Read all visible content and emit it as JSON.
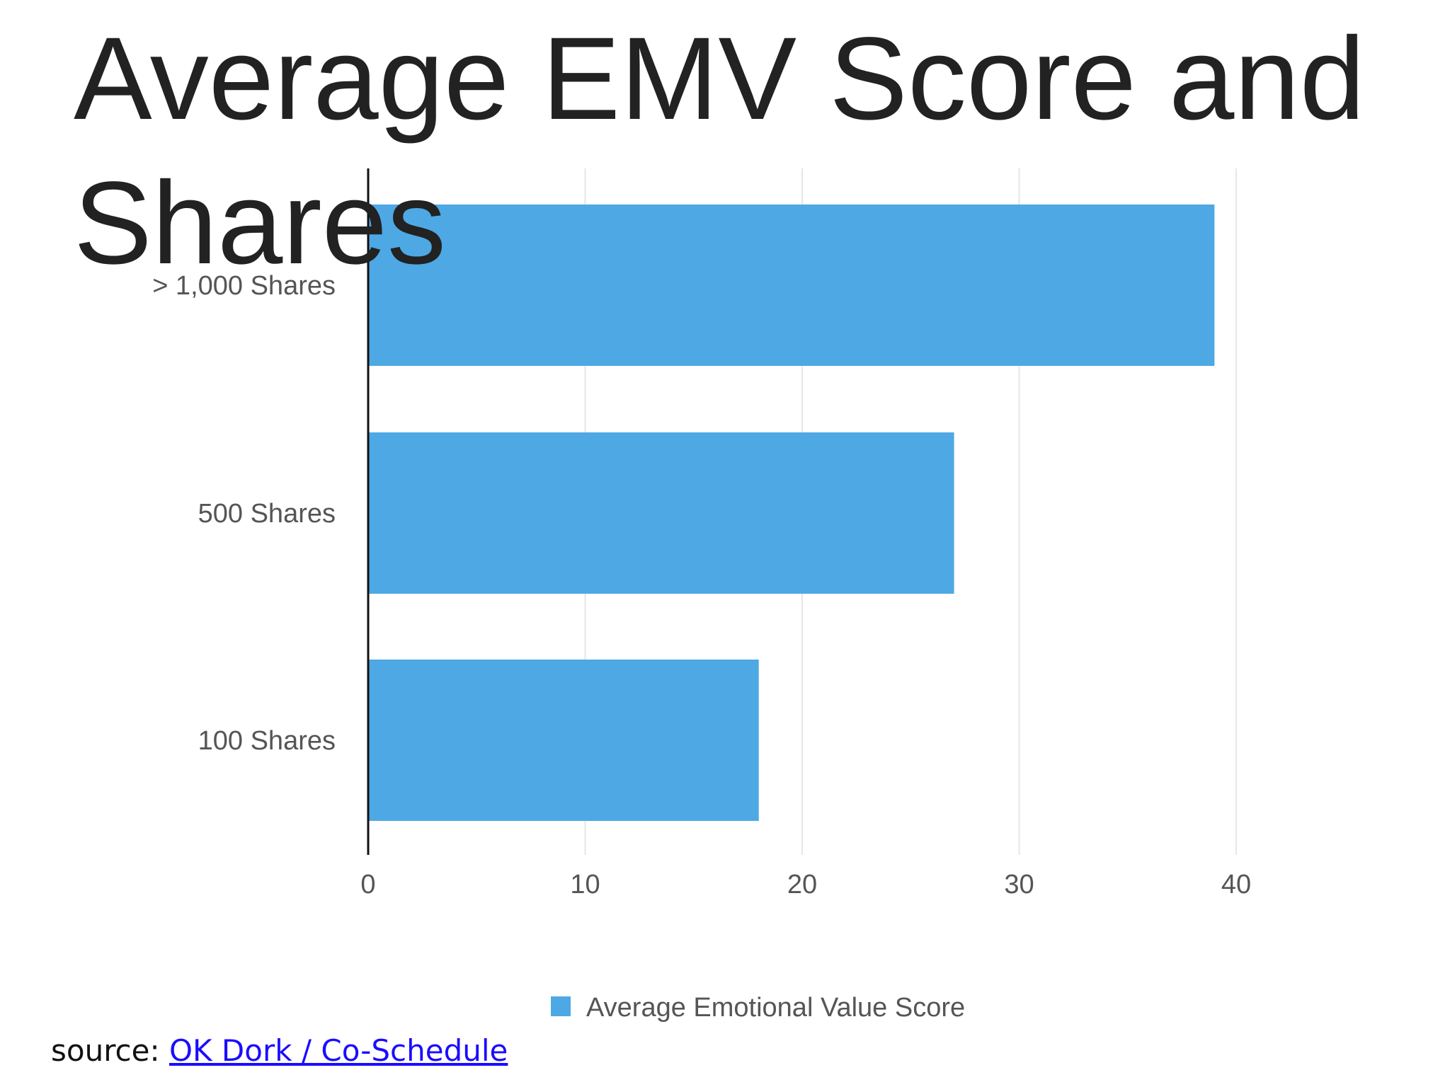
{
  "title": "Average EMV Score and Shares",
  "source": {
    "prefix": "source: ",
    "link_text": "OK Dork / Co-Schedule"
  },
  "colors": {
    "bar": "#4ea8e4",
    "axis": "#111111",
    "grid": "#e6e6e6",
    "title": "#222222",
    "link": "#1a0dff"
  },
  "chart_data": {
    "type": "bar",
    "orientation": "horizontal",
    "categories": [
      "> 1,000 Shares",
      "500 Shares",
      "100 Shares"
    ],
    "series": [
      {
        "name": "Average Emotional Value Score",
        "values": [
          39,
          27,
          18
        ]
      }
    ],
    "xlim": [
      0,
      40
    ],
    "xticks": [
      "0",
      "10",
      "20",
      "30",
      "40"
    ],
    "grid": true,
    "legend_position": "bottom-center"
  }
}
